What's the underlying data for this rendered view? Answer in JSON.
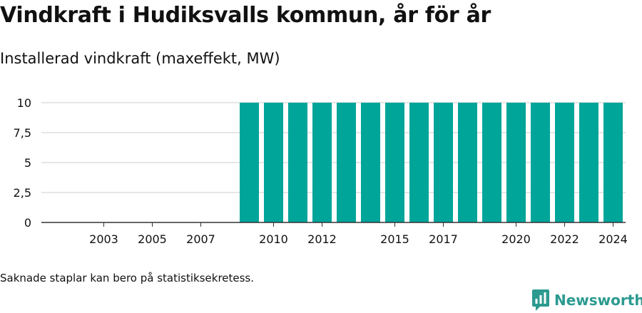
{
  "header": {
    "title": "Vindkraft i Hudiksvalls kommun, år för år",
    "subtitle": "Installerad vindkraft (maxeffekt, MW)"
  },
  "footer": {
    "note": "Saknade staplar kan bero på statistiksekretess.",
    "brand": "Newsworthy"
  },
  "colors": {
    "bar": "#00a59a",
    "grid": "#dddddd",
    "axis": "#333333",
    "brand": "#2b9a8f"
  },
  "icons": {
    "brand_logo": "bar-chart-speech-bubble-icon"
  },
  "chart_data": {
    "type": "bar",
    "categories": [
      "2002",
      "2003",
      "2004",
      "2005",
      "2006",
      "2007",
      "2008",
      "2009",
      "2010",
      "2011",
      "2012",
      "2013",
      "2014",
      "2015",
      "2016",
      "2017",
      "2018",
      "2019",
      "2020",
      "2021",
      "2022",
      "2023",
      "2024"
    ],
    "values": [
      null,
      null,
      null,
      null,
      null,
      null,
      null,
      10,
      10,
      10,
      10,
      10,
      10,
      10,
      10,
      10,
      10,
      10,
      10,
      10,
      10,
      10,
      10
    ],
    "x_tick_labels": [
      "2003",
      "2005",
      "2007",
      "2010",
      "2012",
      "2015",
      "2017",
      "2020",
      "2022",
      "2024"
    ],
    "y_ticks": [
      0,
      2.5,
      5,
      7.5,
      10
    ],
    "y_tick_labels": [
      "0",
      "2,5",
      "5",
      "7,5",
      "10"
    ],
    "ylim": [
      0,
      10
    ],
    "grid": true,
    "legend": "none"
  }
}
